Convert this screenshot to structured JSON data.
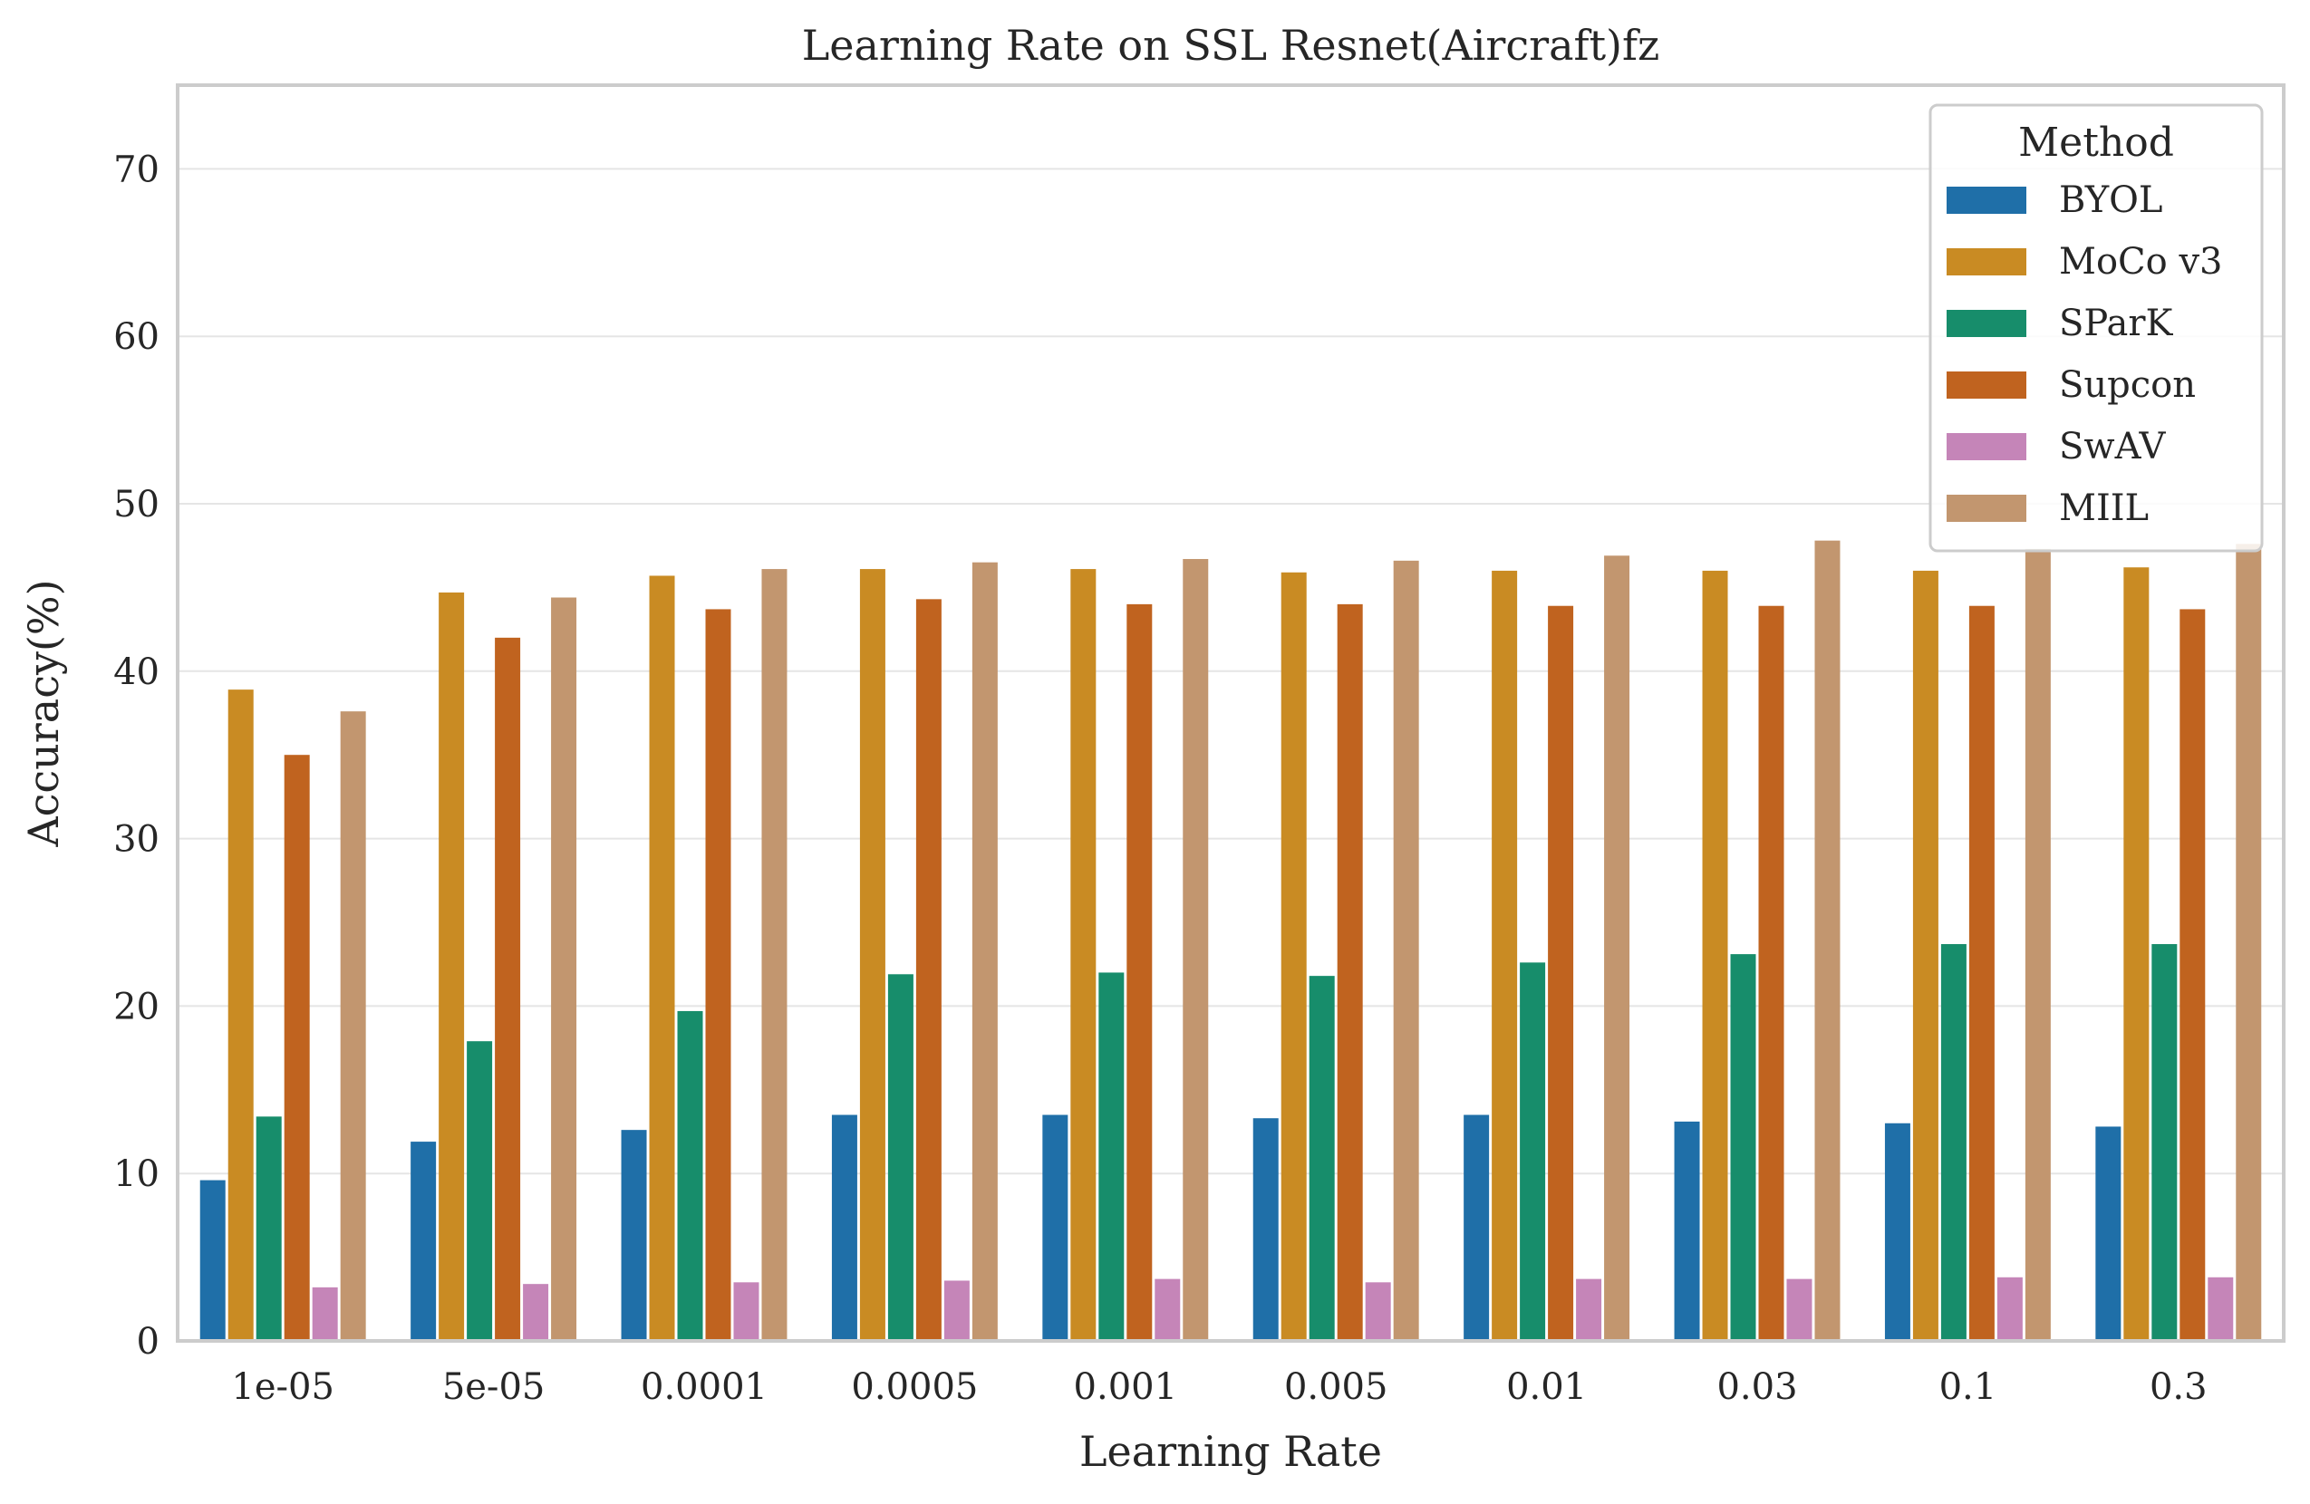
{
  "chart_data": {
    "type": "bar",
    "title": "Learning Rate on SSL Resnet(Aircraft)fz",
    "xlabel": "Learning Rate",
    "ylabel": "Accuracy(%)",
    "ylim": [
      0,
      75
    ],
    "yticks": [
      0,
      10,
      20,
      30,
      40,
      50,
      60,
      70
    ],
    "grid": true,
    "legend_title": "Method",
    "legend_position": "top-right",
    "categories": [
      "1e-05",
      "5e-05",
      "0.0001",
      "0.0005",
      "0.001",
      "0.005",
      "0.01",
      "0.03",
      "0.1",
      "0.3"
    ],
    "series": [
      {
        "name": "BYOL",
        "color": "#1f6fa8",
        "values": [
          9.6,
          11.9,
          12.6,
          13.5,
          13.5,
          13.3,
          13.5,
          13.1,
          13.0,
          12.8
        ]
      },
      {
        "name": "MoCo v3",
        "color": "#c98b23",
        "values": [
          38.9,
          44.7,
          45.7,
          46.1,
          46.1,
          45.9,
          46.0,
          46.0,
          46.0,
          46.2
        ]
      },
      {
        "name": "SParK",
        "color": "#178d6b",
        "values": [
          13.4,
          17.9,
          19.7,
          21.9,
          22.0,
          21.8,
          22.6,
          23.1,
          23.7,
          23.7
        ]
      },
      {
        "name": "Supcon",
        "color": "#c0631f",
        "values": [
          35.0,
          42.0,
          43.7,
          44.3,
          44.0,
          44.0,
          43.9,
          43.9,
          43.9,
          43.7
        ]
      },
      {
        "name": "SwAV",
        "color": "#c585b8",
        "values": [
          3.2,
          3.4,
          3.5,
          3.6,
          3.7,
          3.5,
          3.7,
          3.7,
          3.8,
          3.8
        ]
      },
      {
        "name": "MIIL",
        "color": "#c2966f",
        "values": [
          37.6,
          44.4,
          46.1,
          46.5,
          46.7,
          46.6,
          46.9,
          47.8,
          47.3,
          47.6
        ]
      }
    ]
  }
}
